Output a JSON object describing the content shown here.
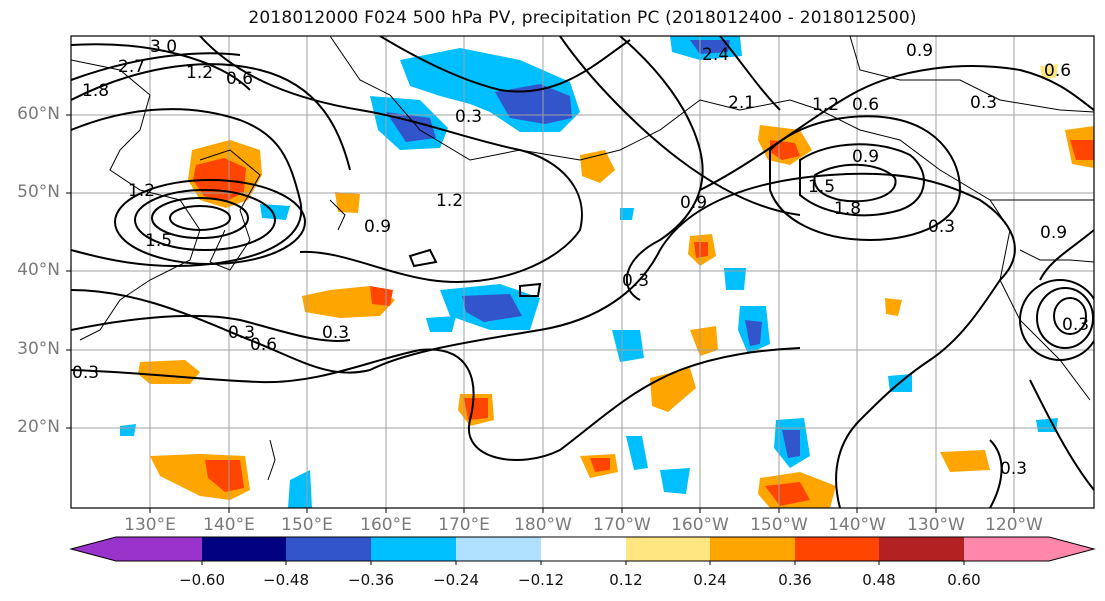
{
  "title": "2018012000 F024 500 hPa PV, precipitation PC (2018012400 - 2018012500)",
  "map": {
    "lat_labels": [
      "60°N",
      "50°N",
      "40°N",
      "30°N",
      "20°N"
    ],
    "lon_labels": [
      "130°E",
      "140°E",
      "150°E",
      "160°E",
      "170°E",
      "180°W",
      "170°W",
      "160°W",
      "150°W",
      "140°W",
      "130°W",
      "120°W"
    ],
    "contour_labels": [
      "3.0",
      "2.7",
      "1.8",
      "1.2",
      "0.6",
      "1.2",
      "1.5",
      "0.3",
      "0.9",
      "1.2",
      "0.9",
      "0.3",
      "0.6",
      "0.3",
      "0.3",
      "2.4",
      "2.1",
      "0.9",
      "1.2",
      "0.6",
      "0.9",
      "1.5",
      "1.8",
      "0.9",
      "0.6",
      "0.3",
      "0.3",
      "0.3",
      "0.3",
      "0.3"
    ]
  },
  "colorbar": {
    "tick_labels": [
      "−0.60",
      "−0.48",
      "−0.36",
      "−0.24",
      "−0.12",
      "0.12",
      "0.24",
      "0.36",
      "0.48",
      "0.60"
    ],
    "colors": [
      "#9933cc",
      "#000080",
      "#3355cc",
      "#00bfff",
      "#b0e0ff",
      "#ffffff",
      "#ffe680",
      "#ffa500",
      "#ff4500",
      "#b22222",
      "#ff88aa",
      "#ff88aa"
    ]
  }
}
